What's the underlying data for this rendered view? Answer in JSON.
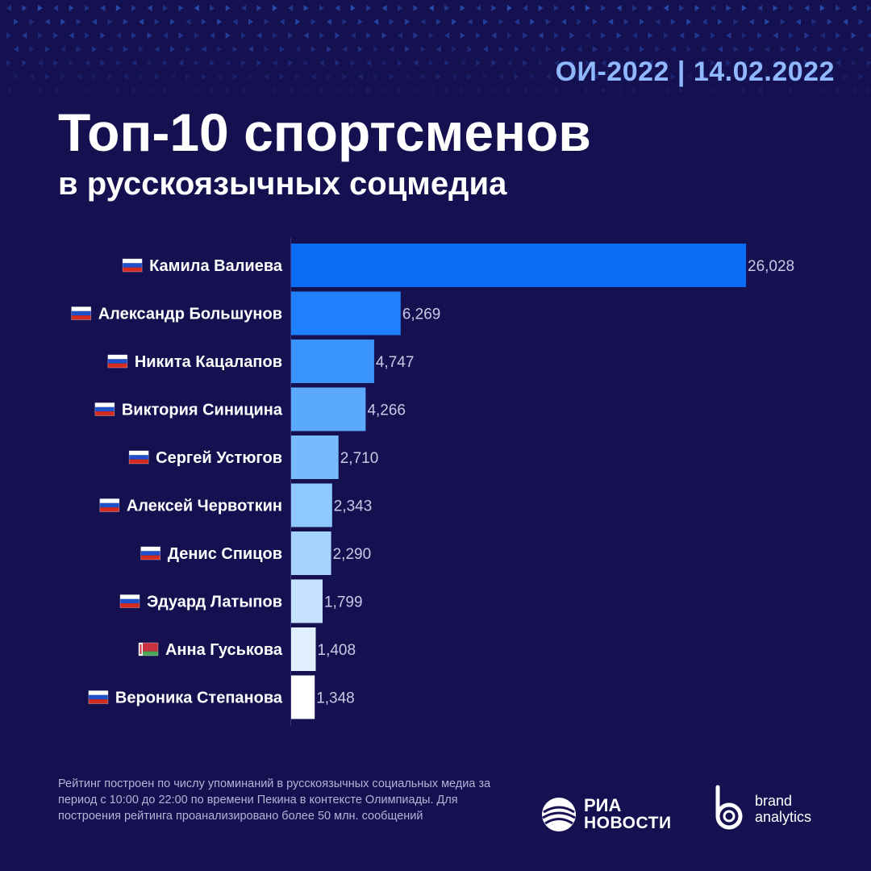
{
  "header": {
    "date_stamp": "ОИ-2022 | 14.02.2022",
    "title": "Топ-10 спортсменов",
    "subtitle": "в русскоязычных соцмедиа"
  },
  "colors": {
    "background": "#15104f",
    "accent": "#8fb8ff",
    "bars": [
      "#0a6cf5",
      "#1e80fb",
      "#3995fc",
      "#5aa9fd",
      "#78bbfd",
      "#8fc8fe",
      "#a5d3fe",
      "#c4e2ff",
      "#e1f0ff",
      "#ffffff"
    ],
    "pattern": "#2a52b8"
  },
  "chart_data": {
    "type": "bar",
    "orientation": "horizontal",
    "title": "Топ-10 спортсменов в русскоязычных соцмедиа",
    "categories": [
      "Камила Валиева",
      "Александр Большунов",
      "Никита Кацалапов",
      "Виктория Синицина",
      "Сергей Устюгов",
      "Алексей Червоткин",
      "Денис Спицов",
      "Эдуард Латыпов",
      "Анна Гуськова",
      "Вероника Степанова"
    ],
    "flags": [
      "russia",
      "russia",
      "russia",
      "russia",
      "russia",
      "russia",
      "russia",
      "russia",
      "belarus",
      "russia"
    ],
    "values": [
      26028,
      6269,
      4747,
      4266,
      2710,
      2343,
      2290,
      1799,
      1408,
      1348
    ],
    "value_labels": [
      "26,028",
      "6,269",
      "4,747",
      "4,266",
      "2,710",
      "2,343",
      "2,290",
      "1,799",
      "1,408",
      "1,348"
    ],
    "xlim": [
      0,
      26028
    ],
    "grid": false,
    "xlabel": "",
    "ylabel": ""
  },
  "footer": {
    "note": "Рейтинг построен по числу упоминаний в русскоязычных социальных медиа за период с 10:00 до 22:00 по времени Пекина в контексте Олимпиады. Для построения рейтинга проанализировано более 50 млн. сообщений",
    "ria_line1": "РИА",
    "ria_line2": "НОВОСТИ",
    "brand_line1": "brand",
    "brand_line2": "analytics"
  }
}
